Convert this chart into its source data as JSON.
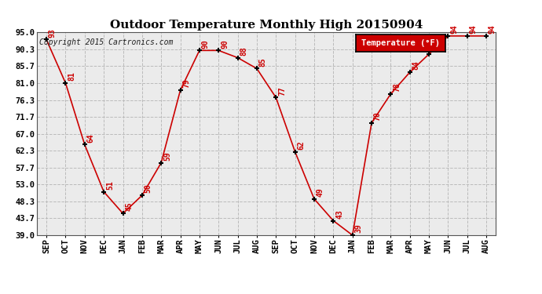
{
  "title": "Outdoor Temperature Monthly High 20150904",
  "copyright": "Copyright 2015 Cartronics.com",
  "legend_label": "Temperature (°F)",
  "months": [
    "SEP",
    "OCT",
    "NOV",
    "DEC",
    "JAN",
    "FEB",
    "MAR",
    "APR",
    "MAY",
    "JUN",
    "JUL",
    "AUG",
    "SEP",
    "OCT",
    "NOV",
    "DEC",
    "JAN",
    "FEB",
    "MAR",
    "APR",
    "MAY",
    "JUN",
    "JUL",
    "AUG"
  ],
  "values": [
    93,
    81,
    64,
    51,
    45,
    50,
    59,
    79,
    90,
    90,
    88,
    85,
    77,
    62,
    49,
    43,
    39,
    70,
    78,
    84,
    89,
    94,
    94,
    94
  ],
  "ylim": [
    39.0,
    95.0
  ],
  "yticks": [
    39.0,
    43.7,
    48.3,
    53.0,
    57.7,
    62.3,
    67.0,
    71.7,
    76.3,
    81.0,
    85.7,
    90.3,
    95.0
  ],
  "ytick_labels": [
    "39.0",
    "43.7",
    "48.3",
    "53.0",
    "57.7",
    "62.3",
    "67.0",
    "71.7",
    "76.3",
    "81.0",
    "85.7",
    "90.3",
    "95.0"
  ],
  "line_color": "#cc0000",
  "marker_color": "#000000",
  "bg_color": "#ebebeb",
  "grid_color": "#bbbbbb",
  "legend_bg": "#cc0000",
  "legend_text_color": "#ffffff",
  "title_fontsize": 11,
  "annot_fontsize": 7,
  "tick_fontsize": 7.5,
  "copyright_fontsize": 7
}
